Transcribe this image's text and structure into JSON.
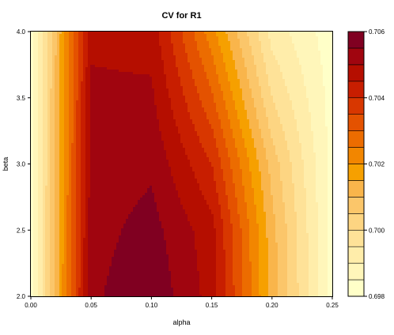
{
  "chart_data": {
    "type": "heatmap",
    "subtype": "filled-contour",
    "title": "CV for R1",
    "xlabel": "alpha",
    "ylabel": "beta",
    "xlim": [
      0.0,
      0.25
    ],
    "ylim": [
      2.0,
      4.0
    ],
    "x_ticks": [
      "0.00",
      "0.05",
      "0.10",
      "0.15",
      "0.20",
      "0.25"
    ],
    "y_ticks": [
      "2.0",
      "2.5",
      "3.0",
      "3.5",
      "4.0"
    ],
    "colorbar": {
      "min": 0.698,
      "max": 0.706,
      "ticks": [
        "0.698",
        "0.700",
        "0.702",
        "0.704",
        "0.706"
      ],
      "levels": 16,
      "colors": [
        "#FFFFC8",
        "#FFF6BA",
        "#FFEDAA",
        "#FEE298",
        "#FDD582",
        "#FBC66A",
        "#F9B54B",
        "#F6A000",
        "#F28600",
        "#EC6C00",
        "#E45200",
        "#D83700",
        "#C81E00",
        "#B50E00",
        "#A0050F",
        "#800021"
      ]
    },
    "z_grid": {
      "alpha": [
        0.0,
        0.05,
        0.1,
        0.15,
        0.2,
        0.25
      ],
      "beta": [
        2.0,
        2.5,
        3.0,
        3.5,
        4.0
      ],
      "values": [
        [
          0.6982,
          0.7054,
          0.7059,
          0.7048,
          0.7013,
          0.6983
        ],
        [
          0.6982,
          0.7053,
          0.7057,
          0.7047,
          0.7012,
          0.6983
        ],
        [
          0.6982,
          0.7052,
          0.7054,
          0.704,
          0.7008,
          0.6983
        ],
        [
          0.6982,
          0.7051,
          0.7051,
          0.7031,
          0.7,
          0.6983
        ],
        [
          0.6982,
          0.7049,
          0.7048,
          0.7022,
          0.6993,
          0.6982
        ]
      ]
    }
  }
}
